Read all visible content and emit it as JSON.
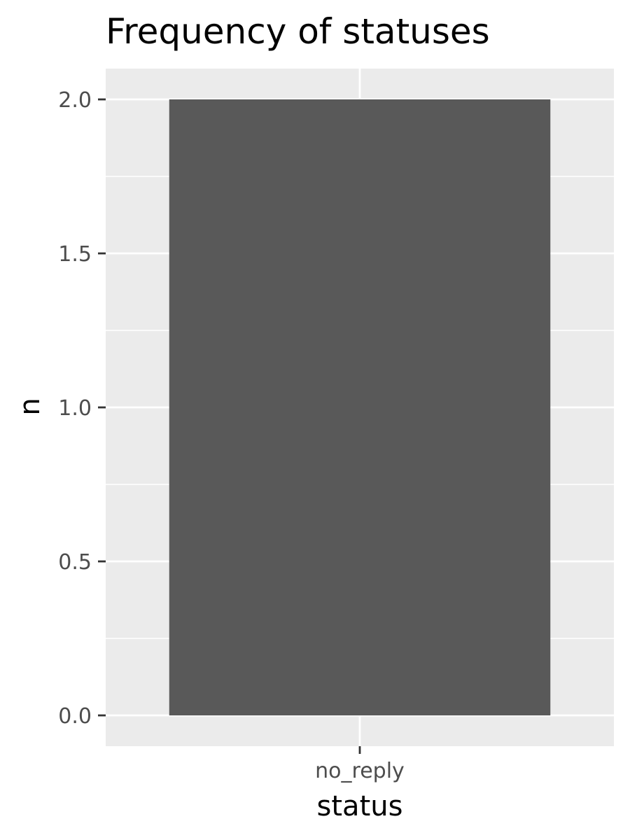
{
  "chart_data": {
    "type": "bar",
    "title": "Frequency of statuses",
    "xlabel": "status",
    "ylabel": "n",
    "categories": [
      "no_reply"
    ],
    "values": [
      2
    ],
    "ylim": [
      -0.1,
      2.1
    ],
    "y_ticks": [
      0,
      0.5,
      1,
      1.5,
      2
    ],
    "y_tick_labels": [
      "0.0",
      "0.5",
      "1.0",
      "1.5",
      "2.0"
    ],
    "grid": true,
    "colors": {
      "bar": "#595959",
      "panel": "#ebebeb",
      "grid": "#ffffff",
      "tick": "#333333"
    }
  }
}
